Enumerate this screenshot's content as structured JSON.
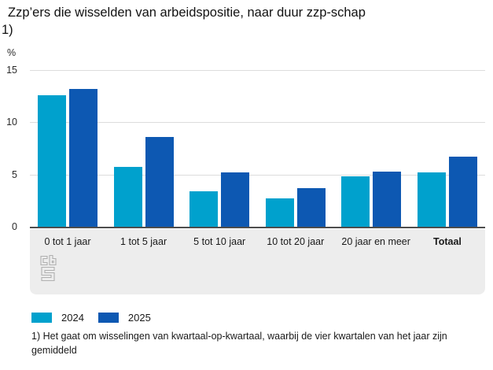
{
  "title_lines": [
    "Zzp’ers die wisselden van arbeidspositie, naar duur zzp-schap",
    "1)"
  ],
  "footnote": "1) Het gaat om wisselingen van kwartaal-op-kwartaal, waarbij de vier kwartalen van het jaar zijn gemiddeld",
  "logo": "cbs",
  "colors": {
    "series_2024": "#00a1cd",
    "series_2025": "#0d58b2",
    "axis_line": "#4d4d4d",
    "gridline": "#dcdcdc",
    "strip_background": "#ededed",
    "logo_gray": "#b0b0b0"
  },
  "chart_data": {
    "type": "bar",
    "title": "Zzp’ers die wisselden van arbeidspositie, naar duur zzp-schap 1)",
    "unit": "%",
    "xlabel": "",
    "ylabel": "%",
    "categories": [
      "0 tot 1 jaar",
      "1 tot 5 jaar",
      "5 tot 10 jaar",
      "10 tot 20 jaar",
      "20 jaar en meer",
      "Totaal"
    ],
    "series": [
      {
        "name": "2024",
        "color": "#00a1cd",
        "values": [
          12.6,
          5.7,
          3.4,
          2.7,
          4.8,
          5.2
        ]
      },
      {
        "name": "2025",
        "color": "#0d58b2",
        "values": [
          13.2,
          8.6,
          5.2,
          3.7,
          5.3,
          6.7
        ]
      }
    ],
    "ylim": [
      0,
      15
    ],
    "yticks": [
      0,
      5,
      10,
      15
    ],
    "grid": true,
    "legend_position": "bottom"
  }
}
